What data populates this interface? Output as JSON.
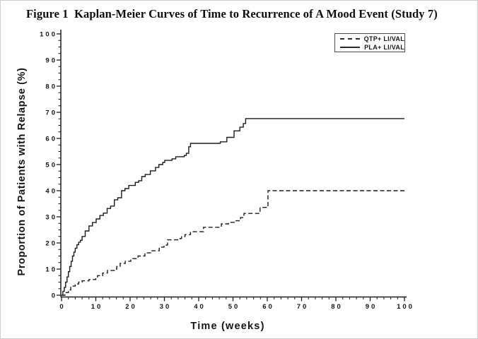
{
  "figure": {
    "title": "Figure 1  Kaplan-Meier Curves of Time to Recurrence of A Mood Event (Study 7)"
  },
  "chart_data": {
    "type": "line",
    "subtype": "kaplan-meier-step",
    "title": "Figure 1  Kaplan-Meier Curves of Time to Recurrence of A Mood Event (Study 7)",
    "xlabel": "Time (weeks)",
    "ylabel": "Proportion of Patients with Relapse (%)",
    "xlim": [
      0,
      100
    ],
    "ylim": [
      0,
      100
    ],
    "x_ticks": [
      0,
      10,
      20,
      30,
      40,
      50,
      60,
      70,
      80,
      90,
      100
    ],
    "y_ticks": [
      0,
      10,
      20,
      30,
      40,
      50,
      60,
      70,
      80,
      90,
      100
    ],
    "x_minor_step": 2,
    "y_minor_step": 2.5,
    "grid": false,
    "legend_position": "top-right",
    "line_color": "#1c1c1c",
    "series": [
      {
        "name": "QTP+ LI/VAL",
        "style": "dashed",
        "points": [
          [
            0,
            0
          ],
          [
            1,
            1
          ],
          [
            2,
            2
          ],
          [
            2.7,
            3.5
          ],
          [
            4,
            4.3
          ],
          [
            5,
            5
          ],
          [
            6,
            5.5
          ],
          [
            8,
            6
          ],
          [
            10,
            6.5
          ],
          [
            10.5,
            7.5
          ],
          [
            12,
            8.5
          ],
          [
            13.4,
            9.5
          ],
          [
            15.7,
            10
          ],
          [
            16.1,
            11
          ],
          [
            17.1,
            12.2
          ],
          [
            18.6,
            13
          ],
          [
            20.2,
            14
          ],
          [
            22.3,
            15
          ],
          [
            24.3,
            16.2
          ],
          [
            26.4,
            17
          ],
          [
            28.5,
            18.4
          ],
          [
            29.9,
            19.2
          ],
          [
            30.9,
            21.2
          ],
          [
            34.6,
            21.7
          ],
          [
            35,
            22.4
          ],
          [
            36,
            23.2
          ],
          [
            37.6,
            24.3
          ],
          [
            41.4,
            26
          ],
          [
            46.6,
            27.3
          ],
          [
            48.7,
            27.9
          ],
          [
            50.7,
            28.5
          ],
          [
            52.2,
            29.7
          ],
          [
            53.2,
            31.3
          ],
          [
            57.9,
            33.6
          ],
          [
            60.2,
            40
          ],
          [
            100,
            40
          ]
        ]
      },
      {
        "name": "PLA+ LI/VAL",
        "style": "solid",
        "points": [
          [
            0,
            0
          ],
          [
            0.4,
            1.5
          ],
          [
            0.8,
            3
          ],
          [
            1.2,
            5
          ],
          [
            1.6,
            7
          ],
          [
            2,
            9
          ],
          [
            2.4,
            11
          ],
          [
            2.8,
            13
          ],
          [
            3.2,
            15
          ],
          [
            3.6,
            16.5
          ],
          [
            4,
            18
          ],
          [
            4.5,
            19.3
          ],
          [
            5,
            20.3
          ],
          [
            5.5,
            21
          ],
          [
            6,
            22.5
          ],
          [
            6.9,
            24.6
          ],
          [
            8,
            26.5
          ],
          [
            9,
            27.8
          ],
          [
            10.1,
            29.2
          ],
          [
            11.2,
            30.5
          ],
          [
            12.2,
            31.4
          ],
          [
            13.3,
            33.2
          ],
          [
            14.3,
            34.1
          ],
          [
            15.4,
            36.5
          ],
          [
            16.4,
            37.3
          ],
          [
            17.5,
            40
          ],
          [
            18.5,
            40.8
          ],
          [
            19.6,
            42
          ],
          [
            21.5,
            43.2
          ],
          [
            22.5,
            43.8
          ],
          [
            23.4,
            45.4
          ],
          [
            24.4,
            46.2
          ],
          [
            25.9,
            47.6
          ],
          [
            27.4,
            48.9
          ],
          [
            28.4,
            50
          ],
          [
            29.5,
            50.8
          ],
          [
            30.1,
            51.6
          ],
          [
            32.2,
            52.2
          ],
          [
            33.3,
            53
          ],
          [
            35.8,
            53.5
          ],
          [
            36.4,
            54.3
          ],
          [
            37.1,
            56.8
          ],
          [
            37.6,
            58.1
          ],
          [
            46.3,
            58.7
          ],
          [
            48.2,
            60.4
          ],
          [
            50.3,
            62.9
          ],
          [
            52,
            64.3
          ],
          [
            53,
            65.7
          ],
          [
            53.7,
            67.6
          ],
          [
            100,
            67.6
          ]
        ]
      }
    ]
  }
}
